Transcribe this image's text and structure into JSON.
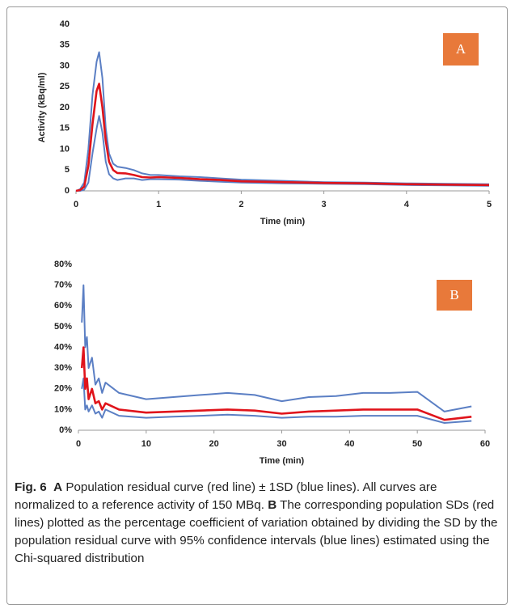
{
  "chart_data": [
    {
      "type": "line",
      "panel_label": "A",
      "ylabel": "Activity (kBq/ml)",
      "xlabel": "Time (min)",
      "xlim": [
        0,
        5
      ],
      "xticks": [
        0,
        1,
        2,
        3,
        4,
        5
      ],
      "ylim": [
        0,
        40
      ],
      "yticks": [
        0,
        5,
        10,
        15,
        20,
        25,
        30,
        35,
        40
      ],
      "x": [
        0,
        0.05,
        0.1,
        0.15,
        0.2,
        0.25,
        0.28,
        0.32,
        0.36,
        0.4,
        0.45,
        0.5,
        0.6,
        0.7,
        0.8,
        0.9,
        1.0,
        1.25,
        1.5,
        1.75,
        2,
        2.5,
        3,
        3.5,
        4,
        4.5,
        5
      ],
      "series": [
        {
          "color": "#5b7fc4",
          "values": [
            0,
            0.4,
            2,
            10,
            23,
            31,
            33.3,
            27,
            15,
            9,
            6.5,
            5.8,
            5.5,
            5.0,
            4.2,
            3.8,
            3.8,
            3.5,
            3.3,
            3.0,
            2.7,
            2.4,
            2.1,
            2.0,
            1.8,
            1.7,
            1.6
          ]
        },
        {
          "color": "#5b7fc4",
          "values": [
            0,
            0,
            0.3,
            2,
            9,
            15,
            18,
            14,
            7,
            4,
            3,
            2.6,
            3,
            3,
            2.6,
            2.8,
            2.8,
            2.7,
            2.4,
            2.2,
            2.0,
            1.8,
            1.7,
            1.6,
            1.4,
            1.3,
            1.2
          ]
        },
        {
          "color": "#e0141b",
          "values": [
            0,
            0.2,
            1,
            6,
            16,
            24,
            25.7,
            20,
            12,
            7,
            5,
            4.3,
            4.2,
            3.8,
            3.3,
            3.2,
            3.3,
            3.1,
            2.8,
            2.6,
            2.3,
            2.1,
            1.9,
            1.8,
            1.6,
            1.5,
            1.4
          ]
        }
      ]
    },
    {
      "type": "line",
      "panel_label": "B",
      "xlabel": "Time (min)",
      "xlim": [
        0,
        60
      ],
      "xticks": [
        0,
        10,
        20,
        30,
        40,
        50,
        60
      ],
      "ylim": [
        0,
        80
      ],
      "yticks": [
        {
          "value": 0,
          "label": "0%"
        },
        {
          "value": 10,
          "label": "10%"
        },
        {
          "value": 20,
          "label": "20%"
        },
        {
          "value": 30,
          "label": "30%"
        },
        {
          "value": 40,
          "label": "40%"
        },
        {
          "value": 50,
          "label": "50%"
        },
        {
          "value": 60,
          "label": "60%"
        },
        {
          "value": 70,
          "label": "70%"
        },
        {
          "value": 80,
          "label": "80%"
        }
      ],
      "x": [
        0.5,
        0.75,
        1,
        1.25,
        1.5,
        2,
        2.5,
        3,
        3.5,
        4,
        6,
        10,
        14,
        18,
        22,
        26,
        30,
        34,
        38,
        42,
        46,
        50,
        54,
        58
      ],
      "series": [
        {
          "color": "#5b7fc4",
          "values": [
            52,
            70,
            40,
            45,
            30,
            35,
            22,
            25,
            18,
            23,
            18,
            15,
            16,
            17,
            18,
            17,
            14,
            16,
            16.5,
            18,
            18,
            18.5,
            9,
            11.5
          ]
        },
        {
          "color": "#5b7fc4",
          "values": [
            20,
            25,
            10,
            12,
            9,
            12,
            8,
            9,
            6,
            10,
            7,
            6,
            6.5,
            7,
            7.5,
            7,
            6,
            6.5,
            6.5,
            7,
            7,
            7,
            3.5,
            4.5
          ]
        },
        {
          "color": "#e0141b",
          "values": [
            30,
            40,
            20,
            25,
            15,
            20,
            13,
            14,
            10,
            13,
            10,
            8.5,
            9,
            9.5,
            10,
            9.5,
            8,
            9,
            9.5,
            10,
            10,
            10,
            5,
            6.5
          ]
        }
      ]
    }
  ],
  "caption": {
    "label": "Fig. 6",
    "parts": [
      {
        "bold": "A",
        "text": "Population residual curve (red line) ± 1SD (blue lines). All curves are normalized to a reference activity of 150 MBq."
      },
      {
        "bold": "B",
        "text": "The corresponding population SDs (red lines) plotted as the percentage coefficient of variation obtained by dividing the SD by the population residual curve with 95% confidence intervals (blue lines) estimated using the Chi-squared distribution"
      }
    ]
  }
}
